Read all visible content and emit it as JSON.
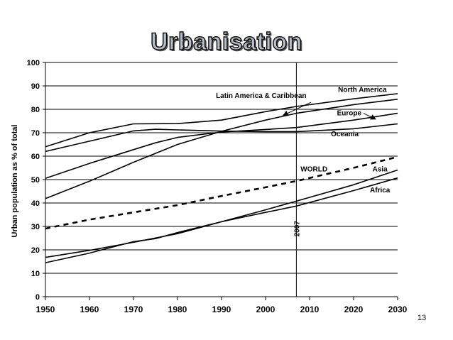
{
  "slide": {
    "page_number": "13"
  },
  "chart_data": {
    "type": "line",
    "title": "Urbanisation",
    "xlabel": "",
    "ylabel": "Urban population as % of total",
    "xlim": [
      1950,
      2030
    ],
    "ylim": [
      0,
      100
    ],
    "x_ticks": [
      1950,
      1960,
      1970,
      1980,
      1990,
      2000,
      2010,
      2020,
      2030
    ],
    "y_ticks": [
      0,
      10,
      20,
      30,
      40,
      50,
      60,
      70,
      80,
      90,
      100
    ],
    "grid": "horizontal",
    "marker_line": {
      "x": 2007,
      "label": "2007"
    },
    "series": [
      {
        "name": "North America",
        "style": "solid",
        "points": [
          [
            1950,
            64
          ],
          [
            1960,
            70
          ],
          [
            1970,
            73.8
          ],
          [
            1980,
            73.9
          ],
          [
            1990,
            75.4
          ],
          [
            2000,
            79
          ],
          [
            2007,
            81.2
          ],
          [
            2020,
            84.5
          ],
          [
            2030,
            86.7
          ]
        ]
      },
      {
        "name": "Latin America & Caribbean",
        "style": "solid",
        "points": [
          [
            1950,
            41.9
          ],
          [
            1960,
            49.3
          ],
          [
            1970,
            57.4
          ],
          [
            1980,
            65
          ],
          [
            1990,
            70.6
          ],
          [
            2000,
            75.4
          ],
          [
            2007,
            78.3
          ],
          [
            2020,
            82
          ],
          [
            2030,
            84.3
          ]
        ]
      },
      {
        "name": "Europe",
        "style": "solid",
        "points": [
          [
            1950,
            50.5
          ],
          [
            1960,
            56.9
          ],
          [
            1970,
            62.8
          ],
          [
            1975,
            65.7
          ],
          [
            1980,
            68
          ],
          [
            1990,
            70.3
          ],
          [
            2000,
            71.4
          ],
          [
            2007,
            72.2
          ],
          [
            2020,
            75.4
          ],
          [
            2030,
            78.3
          ]
        ]
      },
      {
        "name": "Oceania",
        "style": "solid",
        "points": [
          [
            1950,
            62
          ],
          [
            1960,
            66.4
          ],
          [
            1970,
            70.8
          ],
          [
            1975,
            71.5
          ],
          [
            1980,
            71.2
          ],
          [
            1990,
            70.7
          ],
          [
            2000,
            70.5
          ],
          [
            2007,
            70.5
          ],
          [
            2020,
            71.7
          ],
          [
            2030,
            73.8
          ]
        ]
      },
      {
        "name": "WORLD",
        "style": "dashed",
        "points": [
          [
            1950,
            29.1
          ],
          [
            1960,
            32.9
          ],
          [
            1970,
            36
          ],
          [
            1980,
            39.1
          ],
          [
            1990,
            43
          ],
          [
            2000,
            46.7
          ],
          [
            2007,
            49.4
          ],
          [
            2020,
            55
          ],
          [
            2030,
            59.7
          ]
        ]
      },
      {
        "name": "Asia",
        "style": "solid",
        "points": [
          [
            1950,
            16.8
          ],
          [
            1960,
            19.8
          ],
          [
            1970,
            23.2
          ],
          [
            1980,
            26.9
          ],
          [
            1990,
            32
          ],
          [
            2000,
            37.1
          ],
          [
            2007,
            40.8
          ],
          [
            2020,
            47.8
          ],
          [
            2030,
            54.1
          ]
        ]
      },
      {
        "name": "Africa",
        "style": "solid",
        "points": [
          [
            1950,
            14.5
          ],
          [
            1960,
            18.6
          ],
          [
            1970,
            23.5
          ],
          [
            1975,
            24.8
          ],
          [
            1980,
            27.4
          ],
          [
            1990,
            32
          ],
          [
            2000,
            36
          ],
          [
            2007,
            38.7
          ],
          [
            2020,
            45.3
          ],
          [
            2030,
            50.7
          ]
        ]
      }
    ],
    "annotations": [
      {
        "text": "North America",
        "at": [
          2022,
          87.5
        ],
        "arrow": false
      },
      {
        "text": "Latin America & Caribbean",
        "at": [
          1999,
          84.8
        ],
        "arrow": true,
        "arrow_to": [
          2004,
          77.4
        ]
      },
      {
        "text": "Europe",
        "at": [
          2019,
          77.4
        ],
        "arrow": true,
        "arrow_to": [
          2025,
          75.8
        ]
      },
      {
        "text": "Oceania",
        "at": [
          2018,
          68.5
        ],
        "arrow": false
      },
      {
        "text": "WORLD",
        "at": [
          2011,
          53.5
        ],
        "arrow": false
      },
      {
        "text": "Asia",
        "at": [
          2026,
          53.5
        ],
        "arrow": false
      },
      {
        "text": "Africa",
        "at": [
          2026,
          44.5
        ],
        "arrow": false
      }
    ]
  }
}
